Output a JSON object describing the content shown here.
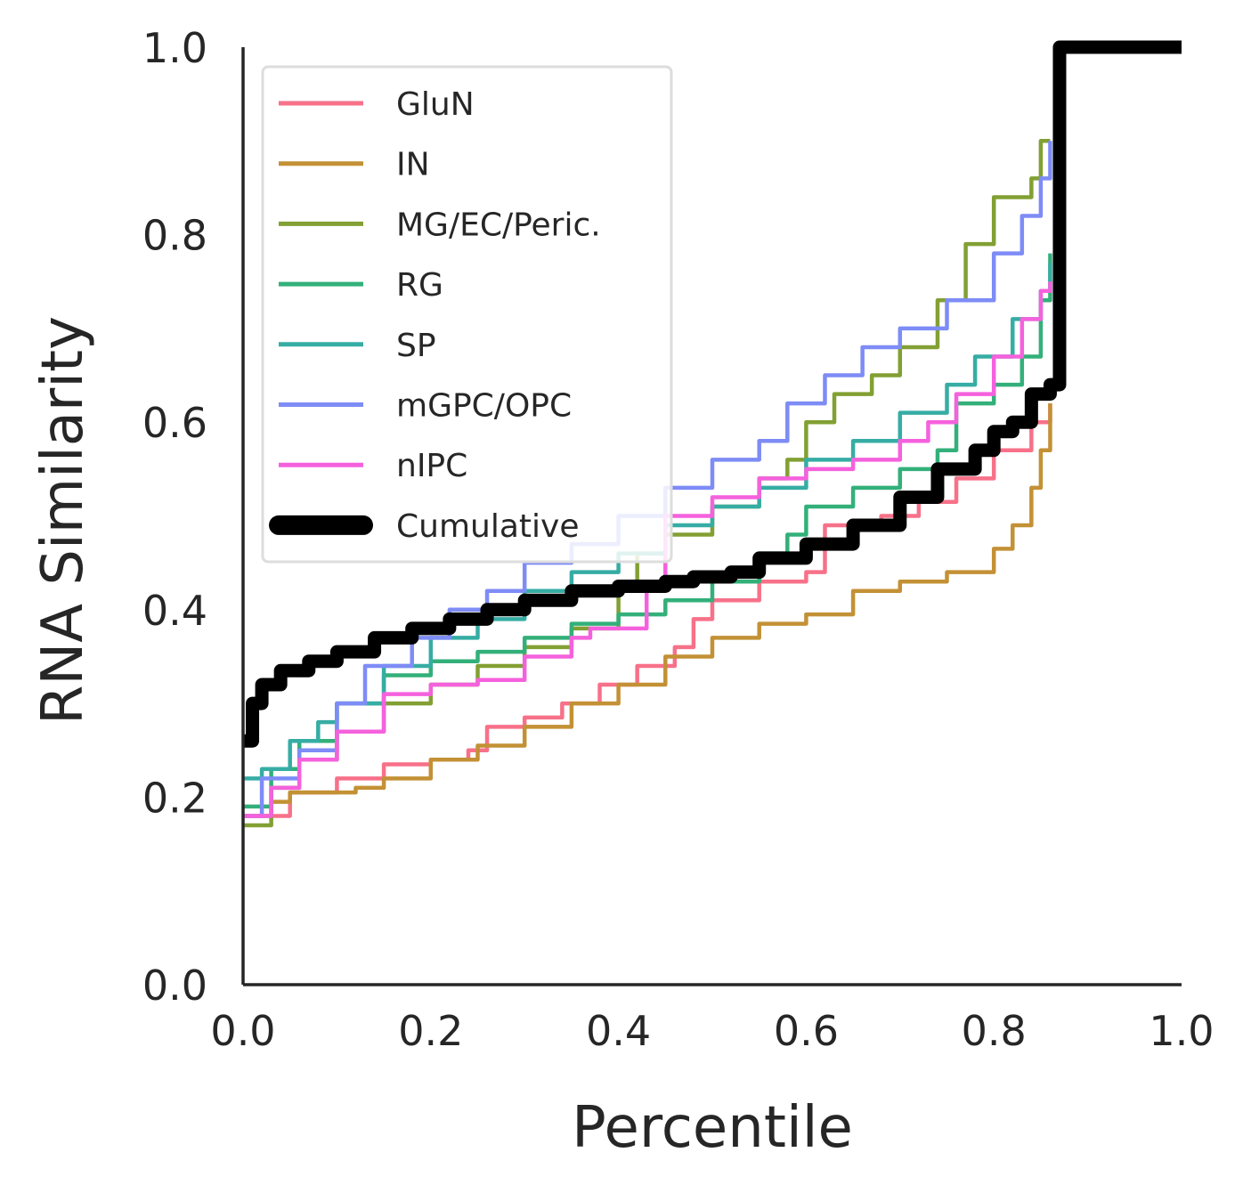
{
  "chart_data": {
    "type": "line",
    "title": "",
    "xlabel": "Percentile",
    "ylabel": "RNA Similarity",
    "xlim": [
      0,
      1
    ],
    "ylim": [
      0,
      1
    ],
    "xticks": [
      "0.0",
      "0.2",
      "0.4",
      "0.6",
      "0.8",
      "1.0"
    ],
    "yticks": [
      "0.0",
      "0.2",
      "0.4",
      "0.6",
      "0.8",
      "1.0"
    ],
    "grid": false,
    "legend_position": "top-left",
    "series": [
      {
        "name": "GluN",
        "color": "#f77189",
        "width": "thin",
        "x": [
          0,
          0.05,
          0.1,
          0.15,
          0.2,
          0.24,
          0.26,
          0.3,
          0.34,
          0.38,
          0.42,
          0.46,
          0.48,
          0.5,
          0.55,
          0.6,
          0.62,
          0.68,
          0.72,
          0.76,
          0.8,
          0.84,
          0.86
        ],
        "y": [
          0.18,
          0.205,
          0.22,
          0.235,
          0.24,
          0.25,
          0.275,
          0.285,
          0.3,
          0.32,
          0.34,
          0.36,
          0.39,
          0.41,
          0.43,
          0.44,
          0.49,
          0.5,
          0.515,
          0.54,
          0.57,
          0.6,
          0.62
        ]
      },
      {
        "name": "IN",
        "color": "#c39135",
        "width": "thin",
        "x": [
          0,
          0.03,
          0.05,
          0.12,
          0.15,
          0.2,
          0.25,
          0.3,
          0.35,
          0.4,
          0.45,
          0.5,
          0.55,
          0.6,
          0.65,
          0.7,
          0.75,
          0.8,
          0.82,
          0.84,
          0.85,
          0.86
        ],
        "y": [
          0.18,
          0.195,
          0.205,
          0.21,
          0.22,
          0.24,
          0.255,
          0.275,
          0.3,
          0.32,
          0.35,
          0.37,
          0.385,
          0.395,
          0.42,
          0.43,
          0.44,
          0.465,
          0.49,
          0.53,
          0.57,
          0.62
        ]
      },
      {
        "name": "MG/EC/Peric.",
        "color": "#82a033",
        "width": "thin",
        "x": [
          0,
          0.03,
          0.06,
          0.1,
          0.15,
          0.2,
          0.25,
          0.3,
          0.35,
          0.4,
          0.42,
          0.45,
          0.5,
          0.55,
          0.58,
          0.6,
          0.63,
          0.67,
          0.7,
          0.74,
          0.77,
          0.8,
          0.84,
          0.85,
          0.86
        ],
        "y": [
          0.17,
          0.21,
          0.24,
          0.27,
          0.3,
          0.32,
          0.34,
          0.36,
          0.38,
          0.42,
          0.46,
          0.48,
          0.51,
          0.54,
          0.56,
          0.6,
          0.63,
          0.65,
          0.68,
          0.73,
          0.79,
          0.84,
          0.86,
          0.9,
          0.9
        ]
      },
      {
        "name": "RG",
        "color": "#33b07a",
        "width": "thin",
        "x": [
          0,
          0.03,
          0.06,
          0.1,
          0.15,
          0.2,
          0.25,
          0.3,
          0.35,
          0.4,
          0.45,
          0.5,
          0.55,
          0.58,
          0.6,
          0.65,
          0.7,
          0.74,
          0.76,
          0.8,
          0.83,
          0.85,
          0.86
        ],
        "y": [
          0.19,
          0.23,
          0.26,
          0.3,
          0.33,
          0.345,
          0.355,
          0.37,
          0.385,
          0.395,
          0.41,
          0.43,
          0.46,
          0.48,
          0.51,
          0.53,
          0.55,
          0.57,
          0.62,
          0.64,
          0.67,
          0.73,
          0.78
        ]
      },
      {
        "name": "SP",
        "color": "#36ada4",
        "width": "thin",
        "x": [
          0,
          0.02,
          0.05,
          0.08,
          0.1,
          0.15,
          0.2,
          0.25,
          0.3,
          0.35,
          0.4,
          0.45,
          0.5,
          0.55,
          0.6,
          0.65,
          0.7,
          0.75,
          0.78,
          0.82,
          0.85,
          0.86
        ],
        "y": [
          0.22,
          0.23,
          0.26,
          0.28,
          0.3,
          0.34,
          0.37,
          0.39,
          0.42,
          0.44,
          0.46,
          0.49,
          0.51,
          0.53,
          0.56,
          0.58,
          0.61,
          0.64,
          0.67,
          0.71,
          0.74,
          0.77
        ]
      },
      {
        "name": "mGPC/OPC",
        "color": "#7e8cf6",
        "width": "thin",
        "x": [
          0,
          0.02,
          0.06,
          0.1,
          0.13,
          0.18,
          0.22,
          0.26,
          0.3,
          0.35,
          0.4,
          0.45,
          0.5,
          0.55,
          0.58,
          0.62,
          0.66,
          0.7,
          0.75,
          0.8,
          0.83,
          0.85,
          0.86
        ],
        "y": [
          0.18,
          0.22,
          0.25,
          0.3,
          0.34,
          0.37,
          0.4,
          0.42,
          0.45,
          0.47,
          0.5,
          0.53,
          0.56,
          0.58,
          0.62,
          0.65,
          0.68,
          0.7,
          0.73,
          0.78,
          0.82,
          0.86,
          0.9
        ]
      },
      {
        "name": "nIPC",
        "color": "#f561dd",
        "width": "thin",
        "x": [
          0,
          0.03,
          0.06,
          0.1,
          0.15,
          0.2,
          0.25,
          0.3,
          0.35,
          0.37,
          0.4,
          0.43,
          0.45,
          0.5,
          0.55,
          0.6,
          0.65,
          0.7,
          0.73,
          0.76,
          0.8,
          0.83,
          0.85,
          0.86
        ],
        "y": [
          0.18,
          0.21,
          0.24,
          0.27,
          0.31,
          0.32,
          0.325,
          0.35,
          0.37,
          0.38,
          0.38,
          0.43,
          0.5,
          0.52,
          0.54,
          0.55,
          0.56,
          0.58,
          0.6,
          0.63,
          0.67,
          0.71,
          0.74,
          0.75
        ]
      },
      {
        "name": "Cumulative",
        "color": "#000000",
        "width": "thick",
        "x": [
          0,
          0.01,
          0.02,
          0.04,
          0.07,
          0.1,
          0.14,
          0.18,
          0.22,
          0.26,
          0.3,
          0.35,
          0.4,
          0.45,
          0.48,
          0.52,
          0.55,
          0.6,
          0.65,
          0.7,
          0.74,
          0.78,
          0.8,
          0.82,
          0.84,
          0.86,
          0.865,
          0.87,
          1.0
        ],
        "y": [
          0.26,
          0.3,
          0.32,
          0.335,
          0.345,
          0.355,
          0.37,
          0.38,
          0.39,
          0.4,
          0.41,
          0.42,
          0.425,
          0.43,
          0.435,
          0.44,
          0.455,
          0.47,
          0.49,
          0.52,
          0.55,
          0.57,
          0.59,
          0.6,
          0.63,
          0.64,
          0.64,
          1.0,
          1.0
        ]
      }
    ]
  }
}
